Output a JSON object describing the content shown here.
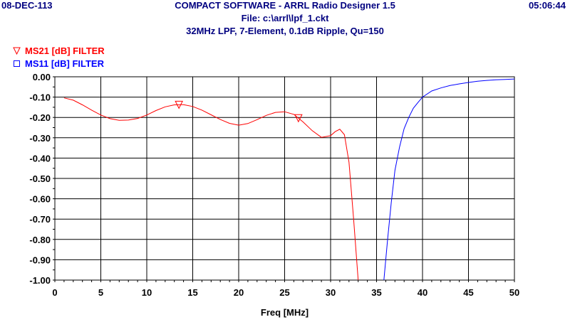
{
  "header": {
    "date": "08-DEC-113",
    "time": "05:06:44",
    "title": "COMPACT SOFTWARE - ARRL Radio Designer 1.5",
    "file": "File: c:\\arrl\\lpf_1.ckt",
    "description": "32MHz LPF, 7-Element, 0.1dB Ripple, Qu=150"
  },
  "chart_data": {
    "type": "line",
    "xlabel": "Freq [MHz]",
    "ylabel": "",
    "xlim": [
      0,
      50
    ],
    "ylim": [
      -1.0,
      0.0
    ],
    "xticks": [
      0,
      5,
      10,
      15,
      20,
      25,
      30,
      35,
      40,
      45,
      50
    ],
    "yticks": [
      0.0,
      -0.1,
      -0.2,
      -0.3,
      -0.4,
      -0.5,
      -0.6,
      -0.7,
      -0.8,
      -0.9,
      -1.0
    ],
    "xtick_labels": [
      "0",
      "5",
      "10",
      "15",
      "20",
      "25",
      "30",
      "35",
      "40",
      "45",
      "50"
    ],
    "ytick_labels": [
      "0.00",
      "-0.10",
      "-0.20",
      "-0.30",
      "-0.40",
      "-0.50",
      "-0.60",
      "-0.70",
      "-0.80",
      "-0.90",
      "-1.00"
    ],
    "grid": true,
    "legend_position": "top-left",
    "series": [
      {
        "name": "MS21 [dB] FILTER",
        "color": "#ff0000",
        "marker": "triangle-down",
        "marker_x": [
          13.5,
          26.5
        ],
        "x": [
          1,
          2,
          3,
          4,
          5,
          6,
          7,
          8,
          9,
          10,
          11,
          12,
          13,
          14,
          15,
          16,
          17,
          18,
          19,
          20,
          21,
          22,
          23,
          24,
          25,
          26,
          27,
          28,
          29,
          30,
          30.5,
          31,
          31.5,
          32,
          32.5,
          33
        ],
        "y": [
          -0.104,
          -0.115,
          -0.138,
          -0.164,
          -0.188,
          -0.206,
          -0.214,
          -0.213,
          -0.205,
          -0.188,
          -0.166,
          -0.148,
          -0.138,
          -0.137,
          -0.146,
          -0.164,
          -0.187,
          -0.21,
          -0.229,
          -0.238,
          -0.23,
          -0.211,
          -0.19,
          -0.175,
          -0.172,
          -0.185,
          -0.222,
          -0.265,
          -0.298,
          -0.29,
          -0.27,
          -0.258,
          -0.285,
          -0.42,
          -0.7,
          -1.0
        ]
      },
      {
        "name": "MS11 [dB] FILTER",
        "color": "#0000ff",
        "marker": "square",
        "marker_x": [],
        "x": [
          35.8,
          36.2,
          36.6,
          37,
          37.5,
          38,
          38.5,
          39,
          39.5,
          40,
          41,
          42,
          43,
          44,
          45,
          46,
          47,
          48,
          49,
          50
        ],
        "y": [
          -1.0,
          -0.8,
          -0.62,
          -0.46,
          -0.345,
          -0.255,
          -0.2,
          -0.155,
          -0.127,
          -0.1,
          -0.07,
          -0.055,
          -0.043,
          -0.035,
          -0.028,
          -0.022,
          -0.018,
          -0.015,
          -0.013,
          -0.011
        ]
      }
    ]
  }
}
